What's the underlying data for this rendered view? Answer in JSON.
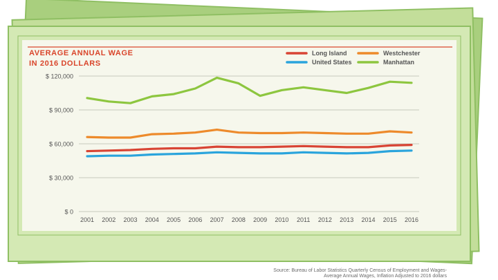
{
  "colors": {
    "background": "#ffffff",
    "bill_back": "#a9cf7e",
    "bill_mid": "#c3de9a",
    "bill_front": "#d4e9b4",
    "bill_border": "#8fbf63",
    "panel": "#f6f7ec",
    "title_red": "#d9452b",
    "grid": "#c5c9bd"
  },
  "chart_data": {
    "type": "line",
    "title": "AVERAGE ANNUAL WAGE",
    "subtitle": "IN 2016 DOLLARS",
    "xlabel": "",
    "ylabel": "",
    "x": [
      "2001",
      "2002",
      "2003",
      "2004",
      "2005",
      "2006",
      "2007",
      "2008",
      "2009",
      "2010",
      "2011",
      "2012",
      "2013",
      "2014",
      "2015",
      "2016"
    ],
    "ylim": [
      0,
      120000
    ],
    "yticks": [
      0,
      30000,
      60000,
      90000,
      120000
    ],
    "ytick_labels": [
      "$ 0",
      "$ 30,000",
      "$ 60,000",
      "$ 90,000",
      "$ 120,000"
    ],
    "grid": true,
    "legend_position": "top-right",
    "series": [
      {
        "name": "Long Island",
        "color": "#d84434",
        "values": [
          53500,
          54000,
          54500,
          55500,
          56000,
          56000,
          57500,
          57000,
          57000,
          57500,
          58000,
          57500,
          57000,
          57000,
          58500,
          59000
        ]
      },
      {
        "name": "United States",
        "color": "#2aa4dc",
        "values": [
          49000,
          49500,
          49500,
          50500,
          51000,
          51500,
          52500,
          52000,
          51500,
          51500,
          52500,
          52000,
          51500,
          52000,
          53500,
          54000
        ]
      },
      {
        "name": "Westchester",
        "color": "#ed8a2b",
        "values": [
          66000,
          65500,
          65500,
          68500,
          69000,
          70000,
          72500,
          70000,
          69500,
          69500,
          70000,
          69500,
          69000,
          69000,
          71000,
          70000
        ]
      },
      {
        "name": "Manhattan",
        "color": "#8dc63f",
        "values": [
          100500,
          97500,
          96000,
          102000,
          104000,
          109000,
          118500,
          113500,
          102500,
          107500,
          110000,
          107500,
          105000,
          109500,
          115000,
          114000
        ]
      }
    ]
  },
  "source": {
    "line1": "Source: Bureau of Labor Statistics Quarterly Census of Employment and Wages-",
    "line2": "Average Annual Wages, Inflation Adjusted to 2016 dollars"
  }
}
